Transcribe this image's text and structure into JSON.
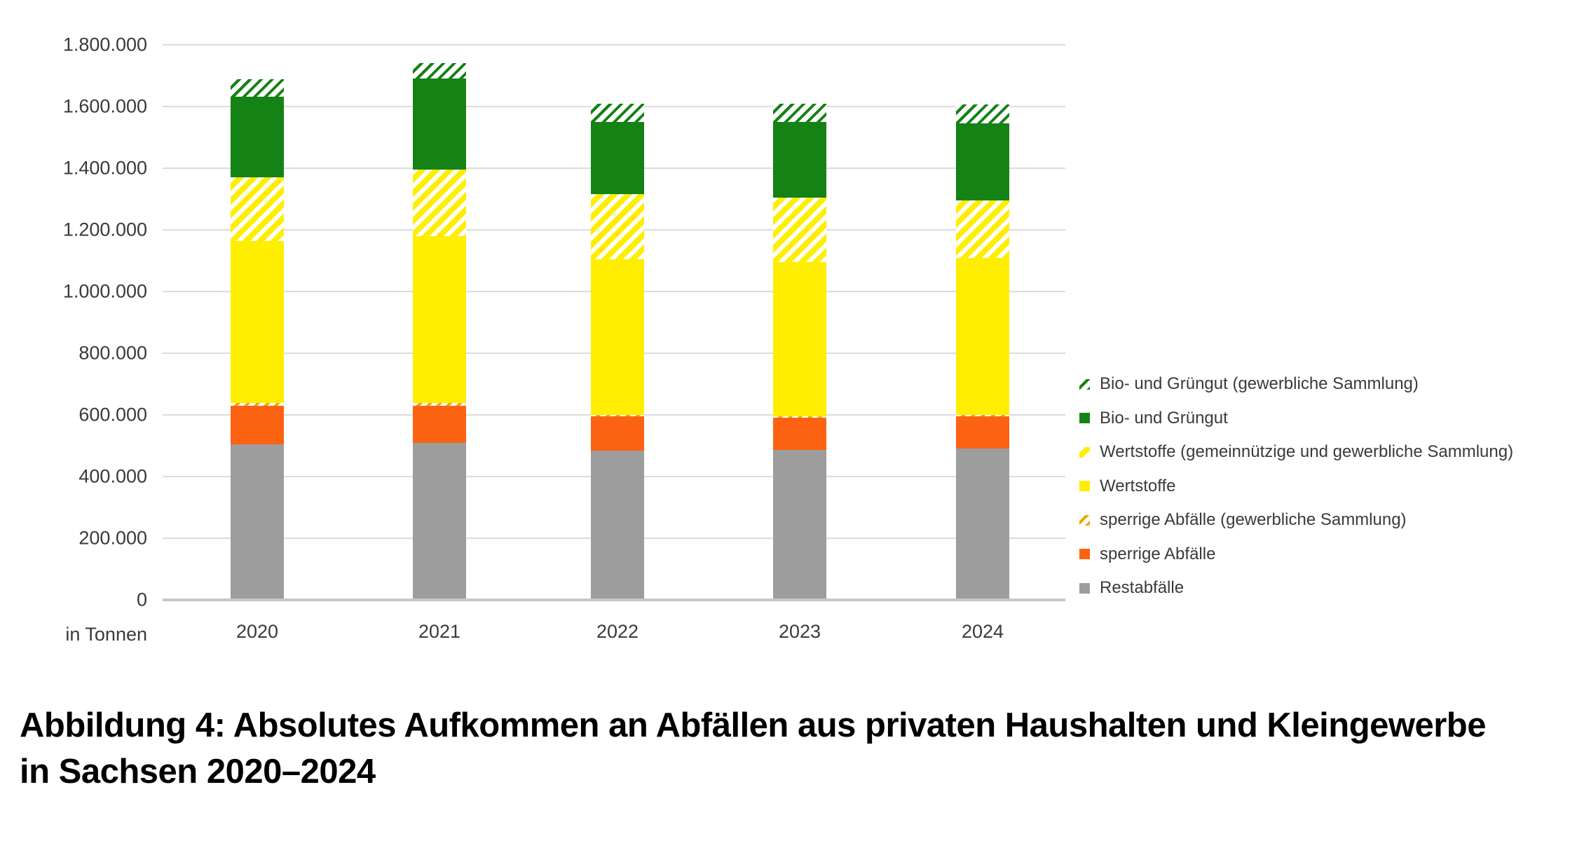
{
  "chart_data": {
    "type": "bar",
    "stacked": true,
    "unit_label": "in Tonnen",
    "categories": [
      "2020",
      "2021",
      "2022",
      "2023",
      "2024"
    ],
    "series": [
      {
        "name": "Restabfälle",
        "color": "#9d9d9d",
        "hatch": false,
        "values": [
          505000,
          510000,
          485000,
          487000,
          492000
        ]
      },
      {
        "name": "sperrige Abfälle",
        "color": "#fb6313",
        "hatch": false,
        "values": [
          125000,
          120000,
          110000,
          103000,
          103000
        ]
      },
      {
        "name": "sperrige Abfälle (gewerbliche Sammlung)",
        "color": "#f2a50c",
        "hatch": true,
        "hatch_bg": "#ffffff",
        "hatch_widths": [
          6,
          4
        ],
        "values": [
          8000,
          8000,
          6000,
          6000,
          6000
        ]
      },
      {
        "name": "Wertstoffe",
        "color": "#ffee00",
        "hatch": false,
        "values": [
          525000,
          542000,
          504000,
          499000,
          509000
        ]
      },
      {
        "name": "Wertstoffe (gemeinnützige und gewerbliche Sammlung)",
        "color": "#ffee00",
        "hatch": true,
        "hatch_bg": "#ffffff",
        "hatch_widths": [
          6,
          8
        ],
        "values": [
          208000,
          215000,
          210000,
          210000,
          185000
        ]
      },
      {
        "name": "Bio- und Grüngut",
        "color": "#148214",
        "hatch": false,
        "values": [
          261000,
          295000,
          235000,
          245000,
          250000
        ]
      },
      {
        "name": "Bio- und Grüngut (gewerbliche Sammlung)",
        "color": "#148214",
        "hatch": true,
        "hatch_bg": "#ffffff",
        "hatch_widths": [
          7,
          4
        ],
        "values": [
          58000,
          50000,
          60000,
          60000,
          63000
        ]
      }
    ],
    "totals": [
      1690000,
      1740000,
      1610000,
      1610000,
      1608000
    ],
    "ylim": [
      0,
      1800000
    ],
    "ytick_step": 200000,
    "ytick_labels": [
      "0",
      "200.000",
      "400.000",
      "600.000",
      "800.000",
      "1.000.000",
      "1.200.000",
      "1.400.000",
      "1.600.000",
      "1.800.000"
    ],
    "grid": true,
    "legend_position": "right",
    "legend_top_to_bottom": [
      "Bio- und Grüngut (gewerbliche Sammlung)",
      "Bio- und Grüngut",
      "Wertstoffe (gemeinnützige und gewerbliche Sammlung)",
      "Wertstoffe",
      "sperrige Abfälle (gewerbliche Sammlung)",
      "sperrige Abfälle",
      "Restabfälle"
    ]
  },
  "caption": {
    "line1": "Abbildung 4: Absolutes Aufkommen an Abfällen aus privaten Haushalten und Kleingewerbe",
    "line2": "in Sachsen 2020–2024"
  },
  "colors": {
    "gridline": "#dcdcdc",
    "axis_line": "#c8c8c8",
    "tick_text": "#3a3a3a",
    "caption_text": "#000000"
  }
}
